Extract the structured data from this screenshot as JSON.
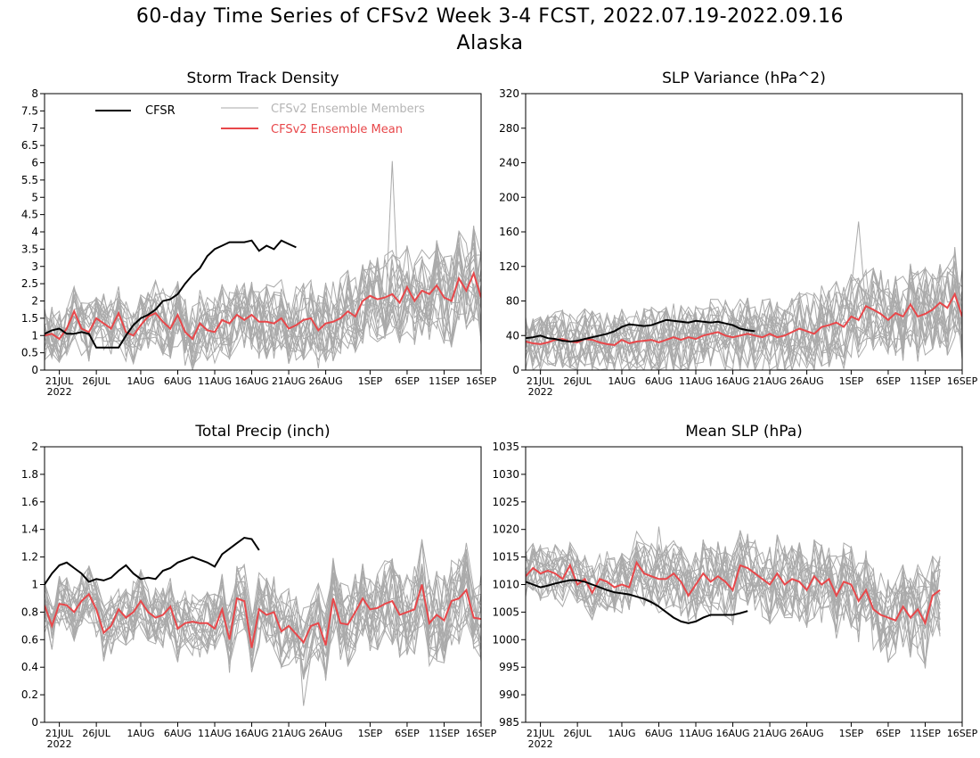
{
  "figure": {
    "title_line1": "60-day Time Series of CFSv2 Week 3-4 FCST, 2022.07.19-2022.09.16",
    "title_line2": "Alaska"
  },
  "legend": {
    "cfsr": "CFSR",
    "members": "CFSv2 Ensemble Members",
    "mean": "CFSv2 Ensemble Mean"
  },
  "colors": {
    "cfsr": "#000000",
    "members": "#aaaaaa",
    "mean": "#e8474a",
    "legend_members_text": "#b5b5b5",
    "legend_mean_text": "#e8474a"
  },
  "x_axis": {
    "start_date": "2022-07-19",
    "days": 60,
    "tick_labels": [
      {
        "date": "2022-07-21",
        "label": "21JUL"
      },
      {
        "date": "2022-07-26",
        "label": "26JUL"
      },
      {
        "date": "2022-08-01",
        "label": "1AUG"
      },
      {
        "date": "2022-08-06",
        "label": "6AUG"
      },
      {
        "date": "2022-08-11",
        "label": "11AUG"
      },
      {
        "date": "2022-08-16",
        "label": "16AUG"
      },
      {
        "date": "2022-08-21",
        "label": "21AUG"
      },
      {
        "date": "2022-08-26",
        "label": "26AUG"
      },
      {
        "date": "2022-09-01",
        "label": "1SEP"
      },
      {
        "date": "2022-09-06",
        "label": "6SEP"
      },
      {
        "date": "2022-09-11",
        "label": "11SEP"
      },
      {
        "date": "2022-09-16",
        "label": "16SEP"
      }
    ],
    "year_label": "2022"
  },
  "chart_data": [
    {
      "id": "storm",
      "type": "line",
      "title": "Storm Track Density",
      "ylim": [
        0,
        8
      ],
      "yticks": [
        "0",
        "0.5",
        "1",
        "1.5",
        "2",
        "2.5",
        "3",
        "3.5",
        "4",
        "4.5",
        "5",
        "5.5",
        "6",
        "6.5",
        "7",
        "7.5",
        "8"
      ],
      "legend_position": "top",
      "member_count": 20,
      "series": [
        {
          "name": "CFSR",
          "values": [
            1.05,
            1.15,
            1.2,
            1.05,
            1.05,
            1.1,
            1.05,
            0.65,
            0.65,
            0.65,
            0.65,
            1.0,
            1.3,
            1.5,
            1.6,
            1.75,
            2.0,
            2.05,
            2.2,
            2.5,
            2.75,
            2.95,
            3.3,
            3.5,
            3.6,
            3.7,
            3.7,
            3.7,
            3.75,
            3.45,
            3.6,
            3.5,
            3.75,
            3.65,
            3.55
          ]
        },
        {
          "name": "CFSv2 Ensemble Mean",
          "values": [
            1.0,
            1.05,
            0.9,
            1.2,
            1.7,
            1.2,
            1.1,
            1.5,
            1.35,
            1.2,
            1.65,
            1.1,
            1.0,
            1.3,
            1.55,
            1.65,
            1.4,
            1.2,
            1.6,
            1.1,
            0.9,
            1.35,
            1.15,
            1.1,
            1.45,
            1.35,
            1.6,
            1.45,
            1.6,
            1.4,
            1.4,
            1.35,
            1.5,
            1.2,
            1.3,
            1.45,
            1.5,
            1.15,
            1.35,
            1.4,
            1.5,
            1.7,
            1.55,
            2.0,
            2.15,
            2.05,
            2.1,
            2.2,
            1.95,
            2.4,
            2.0,
            2.3,
            2.2,
            2.45,
            2.1,
            2.0,
            2.65,
            2.3,
            2.8,
            2.1
          ]
        }
      ]
    },
    {
      "id": "slpvar",
      "type": "line",
      "title": "SLP Variance (hPa^2)",
      "ylim": [
        0,
        320
      ],
      "yticks": [
        "0",
        "40",
        "80",
        "120",
        "160",
        "200",
        "240",
        "280",
        "320"
      ],
      "member_count": 20,
      "series": [
        {
          "name": "CFSR",
          "values": [
            37,
            38,
            40,
            37,
            36,
            34,
            33,
            34,
            36,
            38,
            40,
            42,
            45,
            50,
            53,
            52,
            51,
            52,
            55,
            58,
            57,
            56,
            55,
            57,
            56,
            55,
            56,
            54,
            52,
            48,
            46,
            45
          ]
        },
        {
          "name": "CFSv2 Ensemble Mean",
          "values": [
            33,
            31,
            30,
            32,
            35,
            36,
            33,
            32,
            36,
            35,
            32,
            30,
            29,
            35,
            31,
            33,
            34,
            35,
            32,
            35,
            38,
            35,
            38,
            36,
            40,
            42,
            44,
            40,
            38,
            40,
            42,
            40,
            38,
            42,
            38,
            40,
            44,
            48,
            45,
            42,
            50,
            52,
            55,
            50,
            62,
            58,
            74,
            70,
            65,
            58,
            66,
            62,
            76,
            62,
            65,
            70,
            78,
            72,
            88,
            62
          ]
        }
      ]
    },
    {
      "id": "precip",
      "type": "line",
      "title": "Total Precip (inch)",
      "ylim": [
        0,
        2
      ],
      "yticks": [
        "0",
        "0.2",
        "0.4",
        "0.6",
        "0.8",
        "1",
        "1.2",
        "1.4",
        "1.6",
        "1.8",
        "2"
      ],
      "member_count": 20,
      "series": [
        {
          "name": "CFSR",
          "values": [
            1.0,
            1.08,
            1.14,
            1.16,
            1.12,
            1.08,
            1.02,
            1.04,
            1.03,
            1.05,
            1.1,
            1.14,
            1.08,
            1.04,
            1.05,
            1.04,
            1.1,
            1.12,
            1.16,
            1.18,
            1.2,
            1.18,
            1.16,
            1.13,
            1.22,
            1.26,
            1.3,
            1.34,
            1.33,
            1.25
          ]
        },
        {
          "name": "CFSv2 Ensemble Mean",
          "values": [
            0.85,
            0.7,
            0.86,
            0.85,
            0.8,
            0.88,
            0.93,
            0.82,
            0.65,
            0.7,
            0.82,
            0.76,
            0.8,
            0.88,
            0.8,
            0.76,
            0.78,
            0.84,
            0.68,
            0.72,
            0.73,
            0.72,
            0.72,
            0.68,
            0.82,
            0.6,
            0.9,
            0.88,
            0.54,
            0.82,
            0.78,
            0.8,
            0.66,
            0.7,
            0.64,
            0.58,
            0.7,
            0.72,
            0.56,
            0.9,
            0.72,
            0.71,
            0.8,
            0.9,
            0.82,
            0.83,
            0.86,
            0.88,
            0.78,
            0.8,
            0.82,
            1.0,
            0.72,
            0.78,
            0.74,
            0.88,
            0.9,
            0.96,
            0.76,
            0.75
          ]
        }
      ]
    },
    {
      "id": "mslp",
      "type": "line",
      "title": "Mean SLP (hPa)",
      "ylim": [
        985,
        1035
      ],
      "yticks": [
        "985",
        "990",
        "995",
        "1000",
        "1005",
        "1010",
        "1015",
        "1020",
        "1025",
        "1030",
        "1035"
      ],
      "member_count": 20,
      "series": [
        {
          "name": "CFSR",
          "values": [
            1010.5,
            1010.0,
            1009.5,
            1009.8,
            1010.2,
            1010.5,
            1010.8,
            1010.8,
            1010.5,
            1010.0,
            1009.5,
            1009.0,
            1008.6,
            1008.4,
            1008.2,
            1007.8,
            1007.4,
            1006.8,
            1006.0,
            1005.0,
            1004.0,
            1003.3,
            1003.0,
            1003.3,
            1004.0,
            1004.5,
            1004.5,
            1004.5,
            1004.5,
            1004.8,
            1005.2
          ]
        },
        {
          "name": "CFSv2 Ensemble Mean",
          "values": [
            1011.5,
            1013.0,
            1012.0,
            1012.5,
            1012.0,
            1011.0,
            1013.5,
            1010.0,
            1011.0,
            1008.5,
            1011.0,
            1010.5,
            1009.5,
            1010.0,
            1009.5,
            1014.0,
            1012.0,
            1011.5,
            1011.0,
            1011.0,
            1012.0,
            1010.5,
            1008.0,
            1010.0,
            1012.0,
            1010.5,
            1011.5,
            1010.5,
            1009.0,
            1013.5,
            1013.0,
            1012.0,
            1011.0,
            1010.0,
            1012.0,
            1010.0,
            1011.0,
            1010.5,
            1009.0,
            1011.5,
            1010.0,
            1011.0,
            1008.0,
            1010.5,
            1010.0,
            1007.0,
            1009.0,
            1005.5,
            1004.5,
            1004.0,
            1003.5,
            1006.0,
            1004.0,
            1005.5,
            1003.0,
            1008.0,
            1009.0
          ]
        }
      ]
    }
  ]
}
